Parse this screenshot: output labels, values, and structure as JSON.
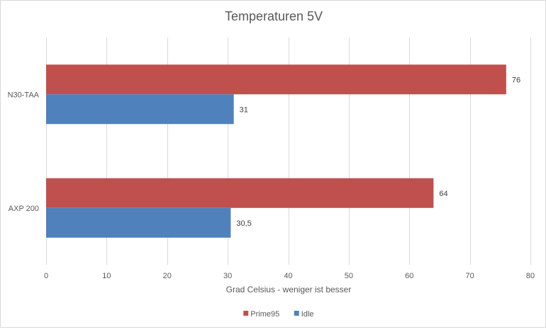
{
  "chart_data": {
    "type": "bar",
    "orientation": "horizontal",
    "title": "Temperaturen 5V",
    "xlabel": "Grad Celsius - weniger  ist besser",
    "ylabel": "",
    "categories": [
      "N30-TAA",
      "AXP 200"
    ],
    "series": [
      {
        "name": "Prime95",
        "color": "#c0504d",
        "values": [
          76,
          64
        ],
        "labels": [
          "76",
          "64"
        ]
      },
      {
        "name": "Idle",
        "color": "#4f81bd",
        "values": [
          31,
          30.5
        ],
        "labels": [
          "31",
          "30,5"
        ]
      }
    ],
    "xlim": [
      0,
      80
    ],
    "xticks": [
      0,
      10,
      20,
      30,
      40,
      50,
      60,
      70,
      80
    ],
    "grid": "vertical",
    "legend": "bottom"
  }
}
